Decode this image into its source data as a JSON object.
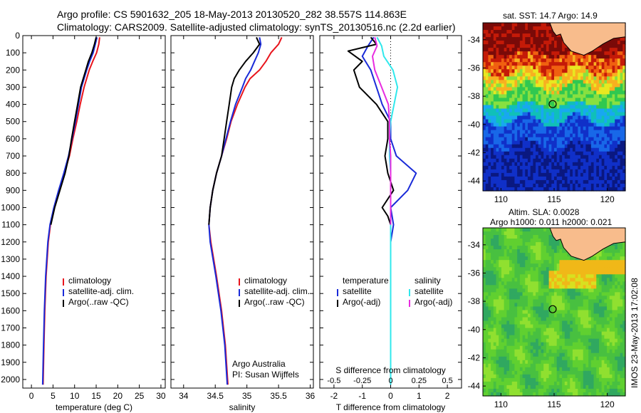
{
  "header": {
    "line1": "Argo profile: CS 5901632_205 18-May-2013 20130520_282 38.557S 114.863E",
    "line2": "Climatology: CARS2009. Satellite-adjusted climatology: synTS_20130516.nc (2.2d earlier)"
  },
  "colors": {
    "climatology": "#e8141c",
    "satellite": "#1a2bd8",
    "argo": "#000000",
    "salinity_satellite": "#30e8ec",
    "salinity_argo": "#e82ce0"
  },
  "chart_data": [
    {
      "id": "temperature",
      "type": "line",
      "xlabel": "temperature (deg C)",
      "ylabel": "",
      "xlim": [
        -2,
        31
      ],
      "ylim": [
        2050,
        0
      ],
      "xticks": [
        0,
        5,
        10,
        15,
        20,
        25,
        30
      ],
      "yticks": [
        0,
        100,
        200,
        300,
        400,
        500,
        600,
        700,
        800,
        900,
        1000,
        1100,
        1200,
        1300,
        1400,
        1500,
        1600,
        1700,
        1800,
        1900,
        2000
      ],
      "legend": [
        "climatology",
        "satellite-adj. clim.",
        "Argo(..raw -QC)"
      ],
      "series": [
        {
          "name": "climatology",
          "color": "#e8141c",
          "depth": [
            10,
            50,
            100,
            150,
            200,
            300,
            400,
            500,
            600,
            700,
            800,
            900,
            1000,
            1100,
            1200,
            1400,
            1600,
            1800,
            2030
          ],
          "values": [
            15.8,
            15.6,
            15.1,
            14.2,
            13.4,
            12.2,
            11.3,
            10.5,
            9.6,
            8.8,
            7.6,
            6.4,
            5.3,
            4.4,
            3.9,
            3.4,
            3.1,
            2.9,
            2.7
          ]
        },
        {
          "name": "satellite-adj. clim.",
          "color": "#1a2bd8",
          "depth": [
            10,
            50,
            100,
            150,
            200,
            300,
            400,
            500,
            600,
            700,
            800,
            900,
            1000,
            1100,
            1200,
            1400,
            1600,
            1800,
            2030
          ],
          "values": [
            15.2,
            14.8,
            14.3,
            13.5,
            12.8,
            11.6,
            10.9,
            10.2,
            9.4,
            8.6,
            7.5,
            6.3,
            5.2,
            4.3,
            3.8,
            3.3,
            3.0,
            2.8,
            2.6
          ]
        },
        {
          "name": "Argo(..raw -QC)",
          "color": "#000000",
          "depth": [
            10,
            50,
            100,
            150,
            200,
            300,
            400,
            500,
            600,
            700,
            800,
            900,
            1000,
            1100
          ],
          "values": [
            15.0,
            14.6,
            14.0,
            13.2,
            12.6,
            11.4,
            10.7,
            10.0,
            9.3,
            8.7,
            7.8,
            6.6,
            5.4,
            4.5
          ]
        }
      ]
    },
    {
      "id": "salinity",
      "type": "line",
      "xlabel": "salinity",
      "ylabel": "",
      "xlim": [
        33.8,
        36.05
      ],
      "ylim": [
        2050,
        0
      ],
      "xticks": [
        34,
        34.5,
        35,
        35.5,
        36
      ],
      "xticklabels": [
        "34",
        "34.5",
        "35",
        "35.5",
        "36"
      ],
      "legend": [
        "climatology",
        "satellite-adj. clim.",
        "Argo(..raw -QC)"
      ],
      "annotation": [
        "Argo Australia",
        "PI: Susan Wijffels"
      ],
      "series": [
        {
          "name": "climatology",
          "color": "#e8141c",
          "depth": [
            10,
            50,
            100,
            150,
            200,
            250,
            300,
            400,
            500,
            600,
            700,
            800,
            900,
            1000,
            1100,
            1200,
            1400,
            1600,
            1800,
            2030
          ],
          "values": [
            35.55,
            35.5,
            35.38,
            35.3,
            35.2,
            35.05,
            34.97,
            34.85,
            34.75,
            34.68,
            34.6,
            34.52,
            34.46,
            34.42,
            34.4,
            34.43,
            34.52,
            34.6,
            34.66,
            34.7
          ]
        },
        {
          "name": "satellite-adj. clim.",
          "color": "#1a2bd8",
          "depth": [
            10,
            50,
            100,
            150,
            200,
            250,
            300,
            400,
            500,
            600,
            700,
            800,
            900,
            1000,
            1100,
            1200,
            1400,
            1600,
            1800,
            2030
          ],
          "values": [
            35.2,
            35.22,
            35.18,
            35.12,
            35.06,
            34.98,
            34.93,
            34.82,
            34.74,
            34.67,
            34.6,
            34.52,
            34.46,
            34.42,
            34.4,
            34.42,
            34.51,
            34.59,
            34.65,
            34.69
          ]
        },
        {
          "name": "Argo(..raw -QC)",
          "color": "#000000",
          "depth": [
            10,
            50,
            100,
            150,
            200,
            250,
            300,
            400,
            500,
            600,
            700,
            800,
            900,
            1000,
            1100
          ],
          "values": [
            35.15,
            35.2,
            35.1,
            34.98,
            34.88,
            34.8,
            34.76,
            34.72,
            34.68,
            34.64,
            34.6,
            34.52,
            34.46,
            34.42,
            34.4
          ]
        }
      ]
    },
    {
      "id": "difference",
      "type": "line",
      "xlabel": "T difference from climatology",
      "xlabel_top": "S difference from climatology",
      "xlim": [
        -2.5,
        2.5
      ],
      "ylim": [
        2050,
        0
      ],
      "xticks": [
        -2,
        -1,
        0,
        1,
        2
      ],
      "xticks_top": [
        -0.5,
        -0.25,
        0,
        0.25,
        0.5
      ],
      "legend_headers": [
        "temperature",
        "salinity"
      ],
      "legend": [
        "satellite",
        "Argo(-adj)",
        "satellite",
        "Argo(-adj)"
      ],
      "series": [
        {
          "name": "satellite",
          "variable": "temperature",
          "color": "#1a2bd8",
          "depth": [
            10,
            60,
            120,
            200,
            300,
            400,
            500,
            600,
            700,
            800,
            900,
            1000,
            1100,
            1200,
            1500,
            2030
          ],
          "values": [
            -0.6,
            -0.8,
            -1.0,
            -0.7,
            -0.5,
            -0.3,
            0.0,
            0.0,
            0.2,
            0.9,
            0.6,
            0.0,
            0.1,
            0.0,
            0.0,
            0.0
          ]
        },
        {
          "name": "Argo(-adj)",
          "variable": "temperature",
          "color": "#000000",
          "depth": [
            10,
            50,
            90,
            150,
            200,
            300,
            400,
            450,
            500,
            600,
            700,
            800,
            900,
            1000,
            1050,
            1100
          ],
          "values": [
            -0.7,
            -0.5,
            -1.5,
            -1.0,
            -1.3,
            -1.1,
            -0.5,
            -0.3,
            -0.1,
            -0.1,
            -0.2,
            -0.1,
            0.1,
            -0.3,
            -0.1,
            0.0
          ]
        },
        {
          "name": "satellite",
          "variable": "salinity",
          "color": "#30e8ec",
          "depth": [
            10,
            60,
            120,
            200,
            300,
            400,
            500,
            600,
            700,
            800,
            1000,
            1200,
            1500,
            2030
          ],
          "values": [
            -0.12,
            -0.08,
            -0.06,
            0.02,
            0.06,
            0.03,
            0.0,
            -0.01,
            -0.01,
            0.0,
            0.0,
            0.0,
            0.0,
            0.0
          ]
        },
        {
          "name": "Argo(-adj)",
          "variable": "salinity",
          "color": "#e82ce0",
          "depth": [
            10,
            60,
            120,
            200,
            300,
            400,
            500,
            600,
            700,
            800,
            1000,
            1100
          ],
          "values": [
            -0.14,
            -0.12,
            -0.16,
            -0.14,
            -0.08,
            -0.02,
            -0.01,
            -0.01,
            0.0,
            0.0,
            0.0,
            0.0
          ]
        }
      ]
    },
    {
      "id": "sst-map",
      "type": "heatmap",
      "title": "sat. SST: 14.7 Argo: 14.9",
      "xlim": [
        108.3,
        121.7
      ],
      "ylim": [
        -44.7,
        -32.8
      ],
      "xticks": [
        110,
        115,
        120
      ],
      "yticks": [
        -34,
        -36,
        -38,
        -40,
        -42,
        -44
      ],
      "marker": {
        "lon": 114.863,
        "lat": -38.557
      },
      "colors": [
        "#7a0a08",
        "#c41a08",
        "#f06010",
        "#f8b020",
        "#e8e820",
        "#88e040",
        "#30c850",
        "#10c0b8",
        "#18a8f0",
        "#1868e8",
        "#1030c8",
        "#0a1880"
      ]
    },
    {
      "id": "sla-map",
      "type": "heatmap",
      "title_lines": [
        "Altim. SLA: 0.0028",
        "Argo h1000: 0.011 h2000: 0.021"
      ],
      "xlim": [
        108.3,
        121.7
      ],
      "ylim": [
        -44.7,
        -32.8
      ],
      "xticks": [
        110,
        115,
        120
      ],
      "yticks": [
        -34,
        -36,
        -38,
        -40,
        -42,
        -44
      ],
      "marker": {
        "lon": 114.863,
        "lat": -38.557
      },
      "colors": [
        "#30a860",
        "#48c040",
        "#60d030",
        "#90e030",
        "#d8e020",
        "#f0b818"
      ]
    }
  ],
  "credit": "IMOS 23-May-2013 17:02:08"
}
